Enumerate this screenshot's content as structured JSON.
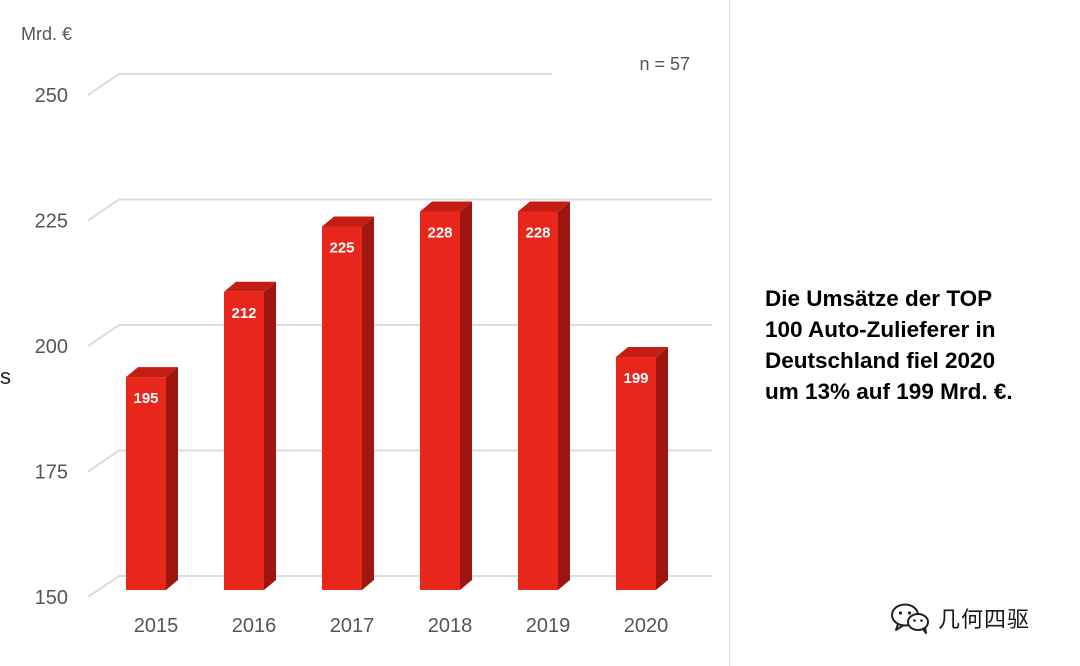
{
  "chart_data": {
    "type": "bar",
    "unit_label": "Mrd. €",
    "sample_note": "n = 57",
    "categories": [
      "2015",
      "2016",
      "2017",
      "2018",
      "2019",
      "2020"
    ],
    "values": [
      195,
      212,
      225,
      228,
      228,
      199
    ],
    "data_labels": [
      "195",
      "212",
      "225",
      "228",
      "228",
      "199"
    ],
    "yticks": [
      "250",
      "225",
      "200",
      "175",
      "150"
    ],
    "ylim": [
      150,
      250
    ],
    "grid": true,
    "bar_color": "#e8261b",
    "bar_side_color": "#9e160f",
    "bar_top_color": "#c41d14"
  },
  "headline": "Die Umsätze der TOP\n100 Auto-Zulieferer in\nDeutschland fiel 2020\num 13% auf 199 Mrd. €.",
  "side_mark": "s",
  "watermark": {
    "text": "几何四驱",
    "icon": "wechat-icon"
  }
}
